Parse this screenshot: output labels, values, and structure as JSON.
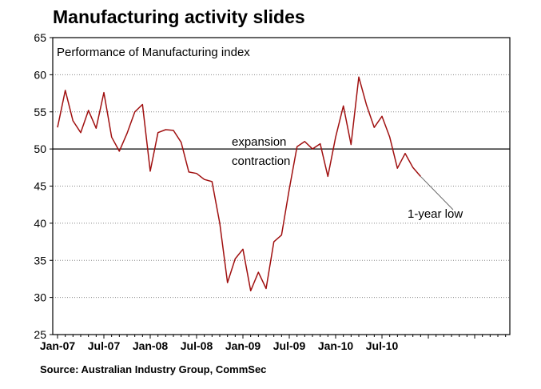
{
  "title": "Manufacturing activity slides",
  "source": "Source: Australian Industry Group, CommSec",
  "chart_data": {
    "type": "line",
    "title": "Manufacturing activity slides",
    "subtitle": "Performance of Manufacturing index",
    "xlabel": "",
    "ylabel": "",
    "ylim": [
      25,
      65
    ],
    "yticks": [
      25,
      30,
      35,
      40,
      45,
      50,
      55,
      60,
      65
    ],
    "xtick_labels": [
      "Jan-07",
      "Jul-07",
      "Jan-08",
      "Jul-08",
      "Jan-09",
      "Jul-09",
      "Jan-10",
      "Jul-10"
    ],
    "grid": true,
    "reference_line": 50,
    "annotations": [
      "expansion",
      "contraction",
      "1-year low"
    ],
    "series_color": "#a01010",
    "x": [
      "Jan-07",
      "Feb-07",
      "Mar-07",
      "Apr-07",
      "May-07",
      "Jun-07",
      "Jul-07",
      "Aug-07",
      "Sep-07",
      "Oct-07",
      "Nov-07",
      "Dec-07",
      "Jan-08",
      "Feb-08",
      "Mar-08",
      "Apr-08",
      "May-08",
      "Jun-08",
      "Jul-08",
      "Aug-08",
      "Sep-08",
      "Oct-08",
      "Nov-08",
      "Dec-08",
      "Jan-09",
      "Feb-09",
      "Mar-09",
      "Apr-09",
      "May-09",
      "Jun-09",
      "Jul-09",
      "Aug-09",
      "Sep-09",
      "Oct-09",
      "Nov-09",
      "Dec-09",
      "Jan-10",
      "Feb-10",
      "Mar-10",
      "Apr-10",
      "May-10",
      "Jun-10",
      "Jul-10",
      "Aug-10",
      "Sep-10",
      "Oct-10",
      "Nov-10",
      "Dec-10"
    ],
    "values": [
      52.9,
      57.9,
      53.8,
      52.2,
      55.2,
      52.8,
      57.6,
      51.6,
      49.7,
      52.1,
      55.0,
      56.0,
      47.0,
      52.2,
      52.6,
      52.5,
      50.9,
      46.9,
      46.7,
      45.9,
      45.6,
      40.0,
      32.0,
      35.2,
      36.5,
      30.9,
      33.4,
      31.2,
      37.5,
      38.4,
      44.6,
      50.3,
      51.0,
      50.0,
      50.7,
      46.3,
      51.6,
      55.8,
      50.6,
      59.7,
      55.9,
      52.9,
      54.4,
      51.6,
      47.4,
      49.4,
      47.5,
      46.3
    ]
  }
}
